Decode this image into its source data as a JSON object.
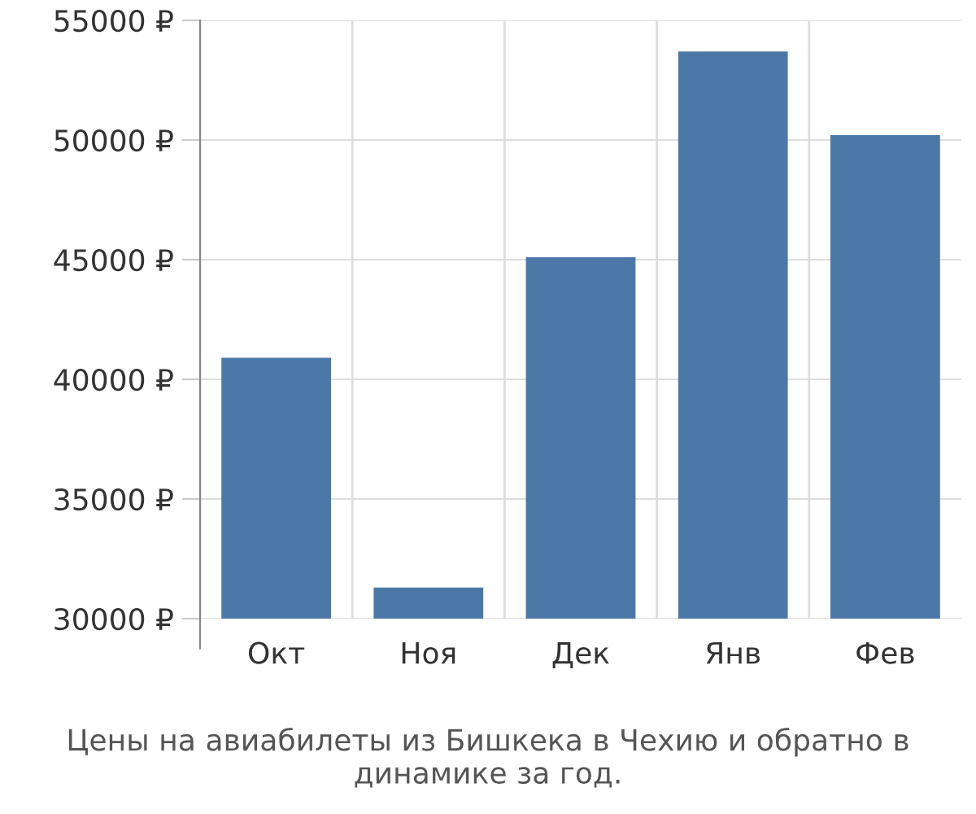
{
  "chart_data": {
    "type": "bar",
    "title": "Цены на авиабилеты из Бишкека в Чехию и обратно в динамике за год.",
    "categories": [
      "Окт",
      "Ноя",
      "Дек",
      "Янв",
      "Фев"
    ],
    "values": [
      40900,
      31300,
      45100,
      53700,
      50200
    ],
    "color": "#4c78a8",
    "ylim": [
      30000,
      55000
    ],
    "yticks": [
      {
        "value": 30000,
        "label": "30000 ₽"
      },
      {
        "value": 35000,
        "label": "35000 ₽"
      },
      {
        "value": 40000,
        "label": "40000 ₽"
      },
      {
        "value": 45000,
        "label": "45000 ₽"
      },
      {
        "value": 50000,
        "label": "50000 ₽"
      },
      {
        "value": 55000,
        "label": "55000 ₽"
      }
    ],
    "grid": true
  }
}
